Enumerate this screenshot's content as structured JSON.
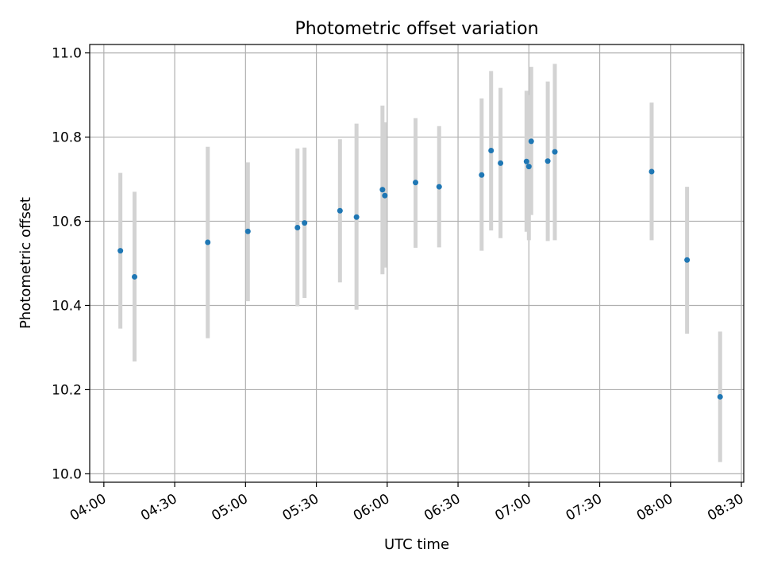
{
  "chart_data": {
    "type": "scatter",
    "title": "Photometric offset variation",
    "xlabel": "UTC time",
    "ylabel": "Photometric offset",
    "xlim": [
      "03:54",
      "08:31"
    ],
    "ylim": [
      9.98,
      11.02
    ],
    "x_ticks": [
      "04:00",
      "04:30",
      "05:00",
      "05:30",
      "06:00",
      "06:30",
      "07:00",
      "07:30",
      "08:00",
      "08:30"
    ],
    "y_ticks": [
      "10.0",
      "10.2",
      "10.4",
      "10.6",
      "10.8",
      "11.0"
    ],
    "grid": true,
    "colors": {
      "point": "#1f77b4",
      "errorbar": "#d3d3d3",
      "grid": "#b0b0b0"
    },
    "points": [
      {
        "t": "04:07",
        "y": 10.53,
        "lo": 10.345,
        "hi": 10.715
      },
      {
        "t": "04:13",
        "y": 10.468,
        "lo": 10.267,
        "hi": 10.67
      },
      {
        "t": "04:44",
        "y": 10.55,
        "lo": 10.322,
        "hi": 10.777
      },
      {
        "t": "05:01",
        "y": 10.576,
        "lo": 10.41,
        "hi": 10.74
      },
      {
        "t": "05:22",
        "y": 10.585,
        "lo": 10.398,
        "hi": 10.773
      },
      {
        "t": "05:25",
        "y": 10.596,
        "lo": 10.418,
        "hi": 10.775
      },
      {
        "t": "05:40",
        "y": 10.625,
        "lo": 10.455,
        "hi": 10.795
      },
      {
        "t": "05:47",
        "y": 10.61,
        "lo": 10.39,
        "hi": 10.832
      },
      {
        "t": "05:58",
        "y": 10.675,
        "lo": 10.474,
        "hi": 10.875
      },
      {
        "t": "05:59",
        "y": 10.661,
        "lo": 10.49,
        "hi": 10.835
      },
      {
        "t": "06:12",
        "y": 10.692,
        "lo": 10.537,
        "hi": 10.845
      },
      {
        "t": "06:22",
        "y": 10.682,
        "lo": 10.538,
        "hi": 10.826
      },
      {
        "t": "06:40",
        "y": 10.71,
        "lo": 10.53,
        "hi": 10.892
      },
      {
        "t": "06:44",
        "y": 10.768,
        "lo": 10.578,
        "hi": 10.957
      },
      {
        "t": "06:48",
        "y": 10.738,
        "lo": 10.56,
        "hi": 10.917
      },
      {
        "t": "06:59",
        "y": 10.742,
        "lo": 10.575,
        "hi": 10.91
      },
      {
        "t": "07:00",
        "y": 10.73,
        "lo": 10.555,
        "hi": 10.9
      },
      {
        "t": "07:01",
        "y": 10.79,
        "lo": 10.615,
        "hi": 10.967
      },
      {
        "t": "07:08",
        "y": 10.743,
        "lo": 10.553,
        "hi": 10.932
      },
      {
        "t": "07:11",
        "y": 10.765,
        "lo": 10.555,
        "hi": 10.974
      },
      {
        "t": "07:52",
        "y": 10.718,
        "lo": 10.555,
        "hi": 10.882
      },
      {
        "t": "08:07",
        "y": 10.508,
        "lo": 10.333,
        "hi": 10.682
      },
      {
        "t": "08:21",
        "y": 10.183,
        "lo": 10.028,
        "hi": 10.338
      }
    ]
  }
}
